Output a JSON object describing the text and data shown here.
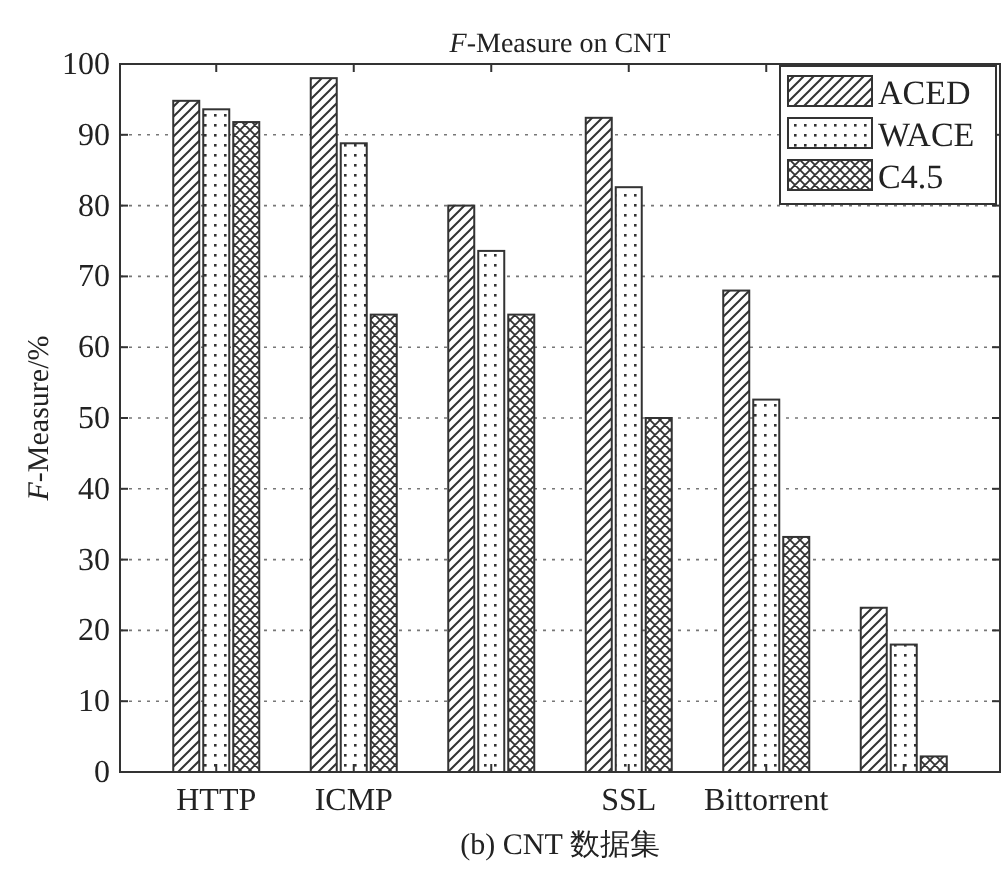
{
  "chart_data": {
    "type": "bar",
    "title": "*F*-Measure on CNT",
    "ylabel": "*F*-Measure/%",
    "annotations": [
      "(b) CNT 数据集"
    ],
    "categories": [
      "HTTP",
      "ICMP",
      null,
      "SSL",
      "Bittorrent",
      null
    ],
    "series": [
      {
        "name": "ACED",
        "color": "#333333",
        "values": [
          94.8,
          98,
          80,
          92.4,
          68,
          23.2
        ]
      },
      {
        "name": "WACE",
        "color": "#333333",
        "values": [
          93.6,
          88.8,
          73.6,
          82.6,
          52.6,
          18
        ]
      },
      {
        "name": "C4.5",
        "color": "#333333",
        "values": [
          91.8,
          64.6,
          64.6,
          50,
          33.2,
          2.2
        ]
      }
    ],
    "ylim": [
      0,
      100
    ],
    "yticks": [
      0,
      10,
      20,
      30,
      40,
      50,
      60,
      70,
      80,
      90,
      100
    ],
    "grid": "y",
    "legend": "top right"
  }
}
